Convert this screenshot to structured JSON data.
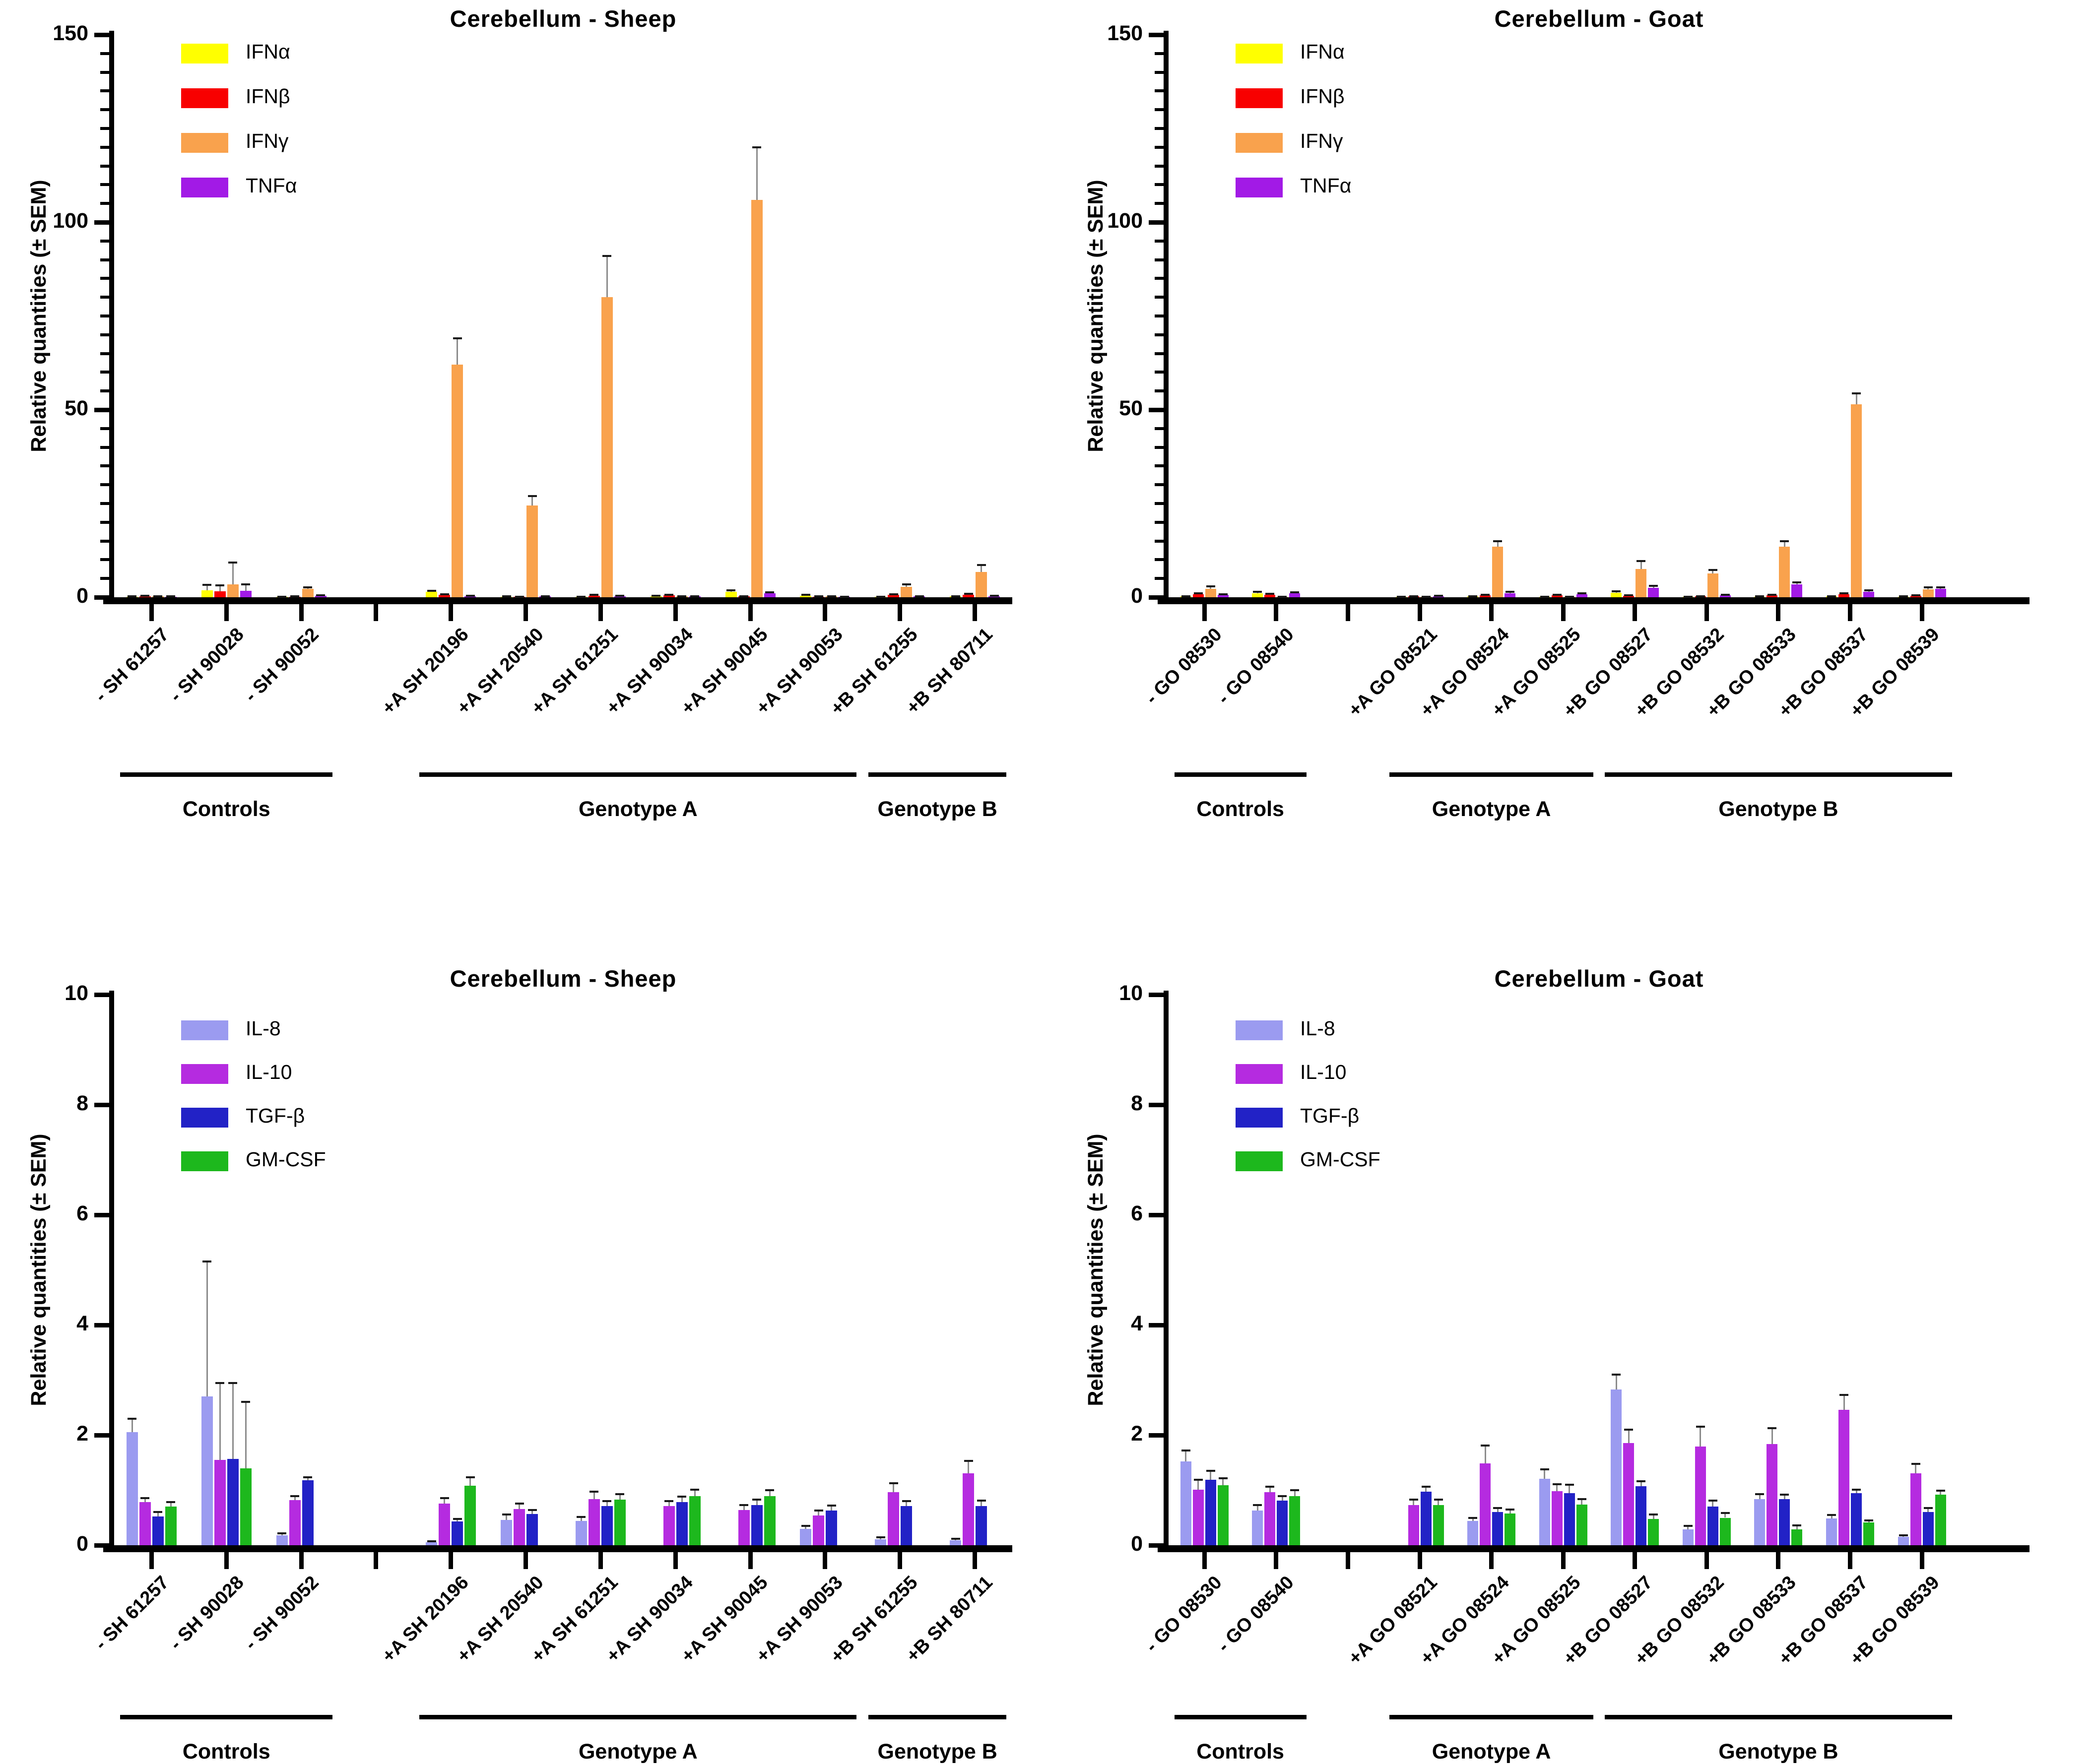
{
  "chart_data": [
    {
      "id": "cytokines-sheep",
      "type": "bar",
      "title": "Cerebellum - Sheep",
      "ylabel": "Relative quantities (± SEM)",
      "ylim": [
        0,
        150
      ],
      "yticks": [
        0,
        50,
        100,
        150
      ],
      "minor_tick_step": 5,
      "grid": false,
      "legend_position": "top-left-inside",
      "error_bars": "SEM upper",
      "slots": 12,
      "tick_slots": [
        0,
        1,
        2,
        3,
        4,
        5,
        6,
        7,
        8,
        9,
        10,
        11
      ],
      "series": [
        {
          "name": "IFNα",
          "color": "#FFFF00"
        },
        {
          "name": "IFNβ",
          "color": "#F80000"
        },
        {
          "name": "IFNγ",
          "color": "#F9A24D"
        },
        {
          "name": "TNFα",
          "color": "#A21AE6"
        }
      ],
      "groups": [
        {
          "label": "Controls",
          "from": 0,
          "to": 2
        },
        {
          "label": "Genotype A",
          "from": 3,
          "to": 8
        },
        {
          "label": "Genotype B",
          "from": 9,
          "to": 10
        }
      ],
      "categories": [
        {
          "label": "- SH 61257",
          "slot": 0,
          "values": [
            0.15,
            0.3,
            0.2,
            0.15
          ],
          "errors": [
            0.1,
            0.15,
            0.1,
            0.1
          ]
        },
        {
          "label": "- SH 90028",
          "slot": 1,
          "values": [
            1.8,
            1.6,
            3.5,
            1.7
          ],
          "errors": [
            1.5,
            1.6,
            5.7,
            1.7
          ]
        },
        {
          "label": "- SH 90052",
          "slot": 2,
          "values": [
            0.1,
            0.15,
            2.2,
            0.4
          ],
          "errors": [
            0.05,
            0.1,
            0.5,
            0.15
          ]
        },
        {
          "label": "+A SH 20196",
          "slot": 4,
          "values": [
            1.4,
            0.6,
            62,
            0.3
          ],
          "errors": [
            0.3,
            0.2,
            7,
            0.1
          ]
        },
        {
          "label": "+A SH 20540",
          "slot": 5,
          "values": [
            0.15,
            0.1,
            24.5,
            0.2
          ],
          "errors": [
            0.1,
            0.05,
            2.5,
            0.1
          ]
        },
        {
          "label": "+A SH 61251",
          "slot": 6,
          "values": [
            0.1,
            0.4,
            80,
            0.3
          ],
          "errors": [
            0.05,
            0.2,
            11,
            0.1
          ]
        },
        {
          "label": "+A SH 90034",
          "slot": 7,
          "values": [
            0.3,
            0.5,
            0.2,
            0.2
          ],
          "errors": [
            0.15,
            0.2,
            0.1,
            0.1
          ]
        },
        {
          "label": "+A SH 90045",
          "slot": 8,
          "values": [
            1.5,
            0.2,
            106,
            1.0
          ],
          "errors": [
            0.3,
            0.1,
            14,
            0.3
          ]
        },
        {
          "label": "+A SH 90053",
          "slot": 9,
          "values": [
            0.4,
            0.15,
            0.2,
            0.1
          ],
          "errors": [
            0.2,
            0.1,
            0.1,
            0.05
          ]
        },
        {
          "label": "+B SH 61255",
          "slot": 10,
          "values": [
            0.1,
            0.6,
            2.8,
            0.2
          ],
          "errors": [
            0.05,
            0.2,
            0.6,
            0.1
          ]
        },
        {
          "label": "+B SH 80711",
          "slot": 11,
          "values": [
            0.2,
            0.7,
            6.8,
            0.3
          ],
          "errors": [
            0.1,
            0.2,
            1.8,
            0.1
          ]
        }
      ]
    },
    {
      "id": "cytokines-goat",
      "type": "bar",
      "title": "Cerebellum - Goat",
      "ylabel": "Relative quantities (± SEM)",
      "ylim": [
        0,
        150
      ],
      "yticks": [
        0,
        50,
        100,
        150
      ],
      "minor_tick_step": 5,
      "grid": false,
      "legend_position": "top-left-inside",
      "error_bars": "SEM upper",
      "slots": 12,
      "tick_slots": [
        0,
        1,
        2,
        3,
        4,
        5,
        6,
        7,
        8,
        9,
        10
      ],
      "series": [
        {
          "name": "IFNα",
          "color": "#FFFF00"
        },
        {
          "name": "IFNβ",
          "color": "#F80000"
        },
        {
          "name": "IFNγ",
          "color": "#F9A24D"
        },
        {
          "name": "TNFα",
          "color": "#A21AE6"
        }
      ],
      "groups": [
        {
          "label": "Controls",
          "from": 0,
          "to": 1
        },
        {
          "label": "Genotype A",
          "from": 2,
          "to": 4
        },
        {
          "label": "Genotype B",
          "from": 5,
          "to": 9
        }
      ],
      "categories": [
        {
          "label": "- GO 08530",
          "slot": 0,
          "values": [
            0.2,
            0.8,
            2.3,
            0.6
          ],
          "errors": [
            0.1,
            0.2,
            0.6,
            0.2
          ]
        },
        {
          "label": "- GO 08540",
          "slot": 1,
          "values": [
            1.1,
            0.7,
            0.1,
            1.0
          ],
          "errors": [
            0.3,
            0.2,
            0.05,
            0.3
          ]
        },
        {
          "label": "+A GO 08521",
          "slot": 3,
          "values": [
            0.1,
            0.2,
            0.1,
            0.3
          ],
          "errors": [
            0.05,
            0.1,
            0.05,
            0.15
          ]
        },
        {
          "label": "+A GO 08524",
          "slot": 4,
          "values": [
            0.2,
            0.5,
            13.5,
            1.1
          ],
          "errors": [
            0.1,
            0.2,
            1.5,
            0.3
          ]
        },
        {
          "label": "+A GO 08525",
          "slot": 5,
          "values": [
            0.1,
            0.5,
            0.1,
            0.8
          ],
          "errors": [
            0.05,
            0.2,
            0.05,
            0.3
          ]
        },
        {
          "label": "+B GO 08527",
          "slot": 6,
          "values": [
            1.2,
            0.4,
            7.5,
            2.5
          ],
          "errors": [
            0.4,
            0.15,
            2.2,
            0.5
          ]
        },
        {
          "label": "+B GO 08532",
          "slot": 7,
          "values": [
            0.1,
            0.2,
            6.3,
            0.5
          ],
          "errors": [
            0.05,
            0.1,
            1.0,
            0.2
          ]
        },
        {
          "label": "+B GO 08533",
          "slot": 8,
          "values": [
            0.15,
            0.5,
            13.5,
            3.4
          ],
          "errors": [
            0.1,
            0.2,
            1.5,
            0.6
          ]
        },
        {
          "label": "+B GO 08537",
          "slot": 9,
          "values": [
            0.2,
            0.8,
            51.5,
            1.4
          ],
          "errors": [
            0.1,
            0.3,
            2.9,
            0.4
          ]
        },
        {
          "label": "+B GO 08539",
          "slot": 10,
          "values": [
            0.15,
            0.4,
            2.1,
            2.2
          ],
          "errors": [
            0.1,
            0.15,
            0.5,
            0.4
          ]
        }
      ]
    },
    {
      "id": "interleukins-sheep",
      "type": "bar",
      "title": "Cerebellum - Sheep",
      "ylabel": "Relative quantities (± SEM)",
      "ylim": [
        0,
        10
      ],
      "yticks": [
        0,
        2,
        4,
        6,
        8,
        10
      ],
      "minor_tick_step": null,
      "grid": false,
      "legend_position": "top-left-inside",
      "error_bars": "SEM upper",
      "slots": 12,
      "tick_slots": [
        0,
        1,
        2,
        3,
        4,
        5,
        6,
        7,
        8,
        9,
        10,
        11
      ],
      "series": [
        {
          "name": "IL-8",
          "color": "#9B9BF0"
        },
        {
          "name": "IL-10",
          "color": "#B52BE0"
        },
        {
          "name": "TGF-β",
          "color": "#2222C6"
        },
        {
          "name": "GM-CSF",
          "color": "#1DB81D"
        }
      ],
      "groups": [
        {
          "label": "Controls",
          "from": 0,
          "to": 2
        },
        {
          "label": "Genotype A",
          "from": 3,
          "to": 8
        },
        {
          "label": "Genotype B",
          "from": 9,
          "to": 10
        }
      ],
      "categories": [
        {
          "label": "- SH 61257",
          "slot": 0,
          "values": [
            2.05,
            0.78,
            0.52,
            0.7
          ],
          "errors": [
            0.25,
            0.08,
            0.08,
            0.08
          ]
        },
        {
          "label": "- SH 90028",
          "slot": 1,
          "values": [
            2.7,
            1.55,
            1.57,
            1.4
          ],
          "errors": [
            2.45,
            1.4,
            1.38,
            1.2
          ]
        },
        {
          "label": "- SH 90052",
          "slot": 2,
          "values": [
            0.18,
            0.82,
            1.18,
            0
          ],
          "errors": [
            0.04,
            0.07,
            0.05,
            0
          ]
        },
        {
          "label": "+A SH 20196",
          "slot": 4,
          "values": [
            0.05,
            0.76,
            0.43,
            1.08
          ],
          "errors": [
            0.02,
            0.1,
            0.05,
            0.15
          ]
        },
        {
          "label": "+A SH 20540",
          "slot": 5,
          "values": [
            0.46,
            0.66,
            0.57,
            0
          ],
          "errors": [
            0.1,
            0.1,
            0.07,
            0
          ]
        },
        {
          "label": "+A SH 61251",
          "slot": 6,
          "values": [
            0.44,
            0.84,
            0.71,
            0.83
          ],
          "errors": [
            0.07,
            0.13,
            0.09,
            0.1
          ]
        },
        {
          "label": "+A SH 90034",
          "slot": 7,
          "values": [
            0,
            0.71,
            0.78,
            0.89
          ],
          "errors": [
            0,
            0.09,
            0.1,
            0.12
          ]
        },
        {
          "label": "+A SH 90045",
          "slot": 8,
          "values": [
            0,
            0.64,
            0.73,
            0.89
          ],
          "errors": [
            0,
            0.09,
            0.1,
            0.11
          ]
        },
        {
          "label": "+A SH 90053",
          "slot": 9,
          "values": [
            0.3,
            0.54,
            0.63,
            0
          ],
          "errors": [
            0.05,
            0.09,
            0.09,
            0
          ]
        },
        {
          "label": "+B SH 61255",
          "slot": 10,
          "values": [
            0.11,
            0.96,
            0.71,
            0
          ],
          "errors": [
            0.03,
            0.17,
            0.09,
            0
          ]
        },
        {
          "label": "+B SH 80711",
          "slot": 11,
          "values": [
            0.09,
            1.31,
            0.71,
            0
          ],
          "errors": [
            0.03,
            0.22,
            0.1,
            0
          ]
        }
      ]
    },
    {
      "id": "interleukins-goat",
      "type": "bar",
      "title": "Cerebellum - Goat",
      "ylabel": "Relative quantities (± SEM)",
      "ylim": [
        0,
        10
      ],
      "yticks": [
        0,
        2,
        4,
        6,
        8,
        10
      ],
      "minor_tick_step": null,
      "grid": false,
      "legend_position": "top-left-inside",
      "error_bars": "SEM upper",
      "slots": 12,
      "tick_slots": [
        0,
        1,
        2,
        3,
        4,
        5,
        6,
        7,
        8,
        9,
        10
      ],
      "series": [
        {
          "name": "IL-8",
          "color": "#9B9BF0"
        },
        {
          "name": "IL-10",
          "color": "#B52BE0"
        },
        {
          "name": "TGF-β",
          "color": "#2222C6"
        },
        {
          "name": "GM-CSF",
          "color": "#1DB81D"
        }
      ],
      "groups": [
        {
          "label": "Controls",
          "from": 0,
          "to": 1
        },
        {
          "label": "Genotype A",
          "from": 2,
          "to": 4
        },
        {
          "label": "Genotype B",
          "from": 5,
          "to": 9
        }
      ],
      "categories": [
        {
          "label": "- GO 08530",
          "slot": 0,
          "values": [
            1.52,
            1.01,
            1.19,
            1.09
          ],
          "errors": [
            0.2,
            0.18,
            0.16,
            0.13
          ]
        },
        {
          "label": "- GO 08540",
          "slot": 1,
          "values": [
            0.63,
            0.96,
            0.81,
            0.89
          ],
          "errors": [
            0.1,
            0.1,
            0.08,
            0.11
          ]
        },
        {
          "label": "+A GO 08521",
          "slot": 3,
          "values": [
            0,
            0.73,
            0.97,
            0.73
          ],
          "errors": [
            0,
            0.1,
            0.09,
            0.1
          ]
        },
        {
          "label": "+A GO 08524",
          "slot": 4,
          "values": [
            0.44,
            1.49,
            0.6,
            0.58
          ],
          "errors": [
            0.06,
            0.32,
            0.08,
            0.07
          ]
        },
        {
          "label": "+A GO 08525",
          "slot": 5,
          "values": [
            1.21,
            0.98,
            0.95,
            0.74
          ],
          "errors": [
            0.17,
            0.13,
            0.15,
            0.1
          ]
        },
        {
          "label": "+B GO 08527",
          "slot": 6,
          "values": [
            2.83,
            1.86,
            1.07,
            0.48
          ],
          "errors": [
            0.27,
            0.24,
            0.09,
            0.08
          ]
        },
        {
          "label": "+B GO 08532",
          "slot": 7,
          "values": [
            0.29,
            1.79,
            0.7,
            0.5
          ],
          "errors": [
            0.06,
            0.36,
            0.11,
            0.09
          ]
        },
        {
          "label": "+B GO 08533",
          "slot": 8,
          "values": [
            0.84,
            1.84,
            0.84,
            0.29
          ],
          "errors": [
            0.09,
            0.29,
            0.08,
            0.07
          ]
        },
        {
          "label": "+B GO 08537",
          "slot": 9,
          "values": [
            0.49,
            2.46,
            0.95,
            0.41
          ],
          "errors": [
            0.06,
            0.27,
            0.06,
            0.04
          ]
        },
        {
          "label": "+B GO 08539",
          "slot": 10,
          "values": [
            0.15,
            1.31,
            0.6,
            0.92
          ],
          "errors": [
            0.03,
            0.17,
            0.08,
            0.07
          ]
        }
      ]
    }
  ]
}
